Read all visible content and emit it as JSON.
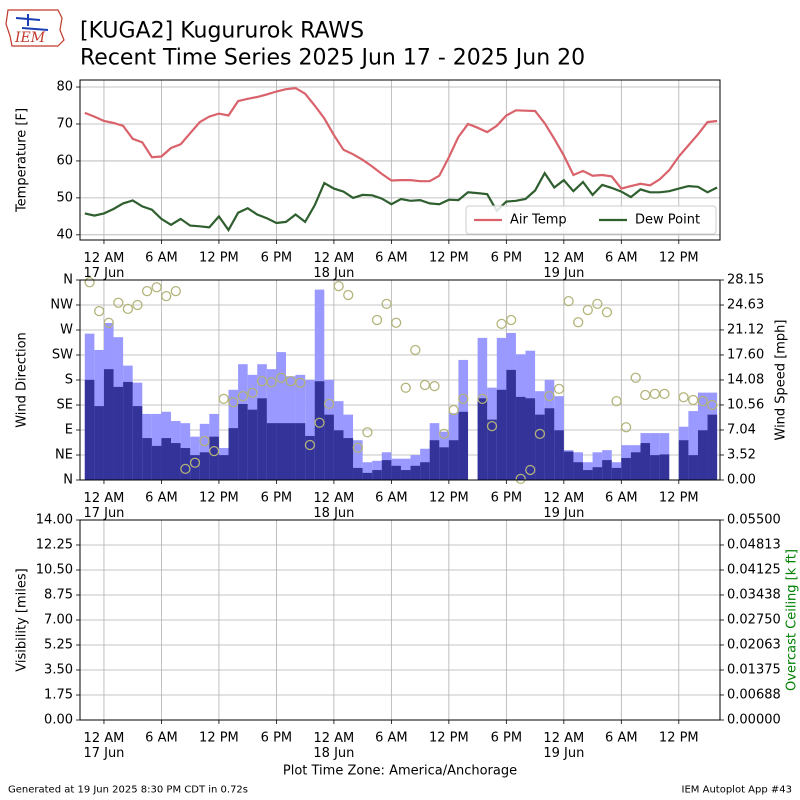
{
  "header": {
    "title": "[KUGA2] Kugururok RAWS",
    "subtitle": "Recent Time Series 2025 Jun 17 - 2025 Jun 20",
    "logo": "IEM"
  },
  "footer": {
    "left": "Generated at 19 Jun 2025 8:30 PM CDT in 0.72s",
    "right": "IEM Autoplot App #43"
  },
  "chart_data": [
    {
      "type": "line",
      "ylabel": "Temperature [F]",
      "xlim": [
        -2.5,
        64.3
      ],
      "xticks": [
        {
          "value": 0,
          "label": "12 AM\n17 Jun"
        },
        {
          "value": 6,
          "label": "6 AM"
        },
        {
          "value": 12,
          "label": "12 PM"
        },
        {
          "value": 18,
          "label": "6 PM"
        },
        {
          "value": 24,
          "label": "12 AM\n18 Jun"
        },
        {
          "value": 30,
          "label": "6 AM"
        },
        {
          "value": 36,
          "label": "12 PM"
        },
        {
          "value": 42,
          "label": "6 PM"
        },
        {
          "value": 48,
          "label": "12 AM\n19 Jun"
        },
        {
          "value": 54,
          "label": "6 AM"
        },
        {
          "value": 60,
          "label": "12 PM"
        }
      ],
      "ylim": [
        38.6,
        81.9
      ],
      "yticks": [
        40,
        50,
        60,
        70,
        80
      ],
      "grid": true,
      "legend": "lower right",
      "x": [
        -2,
        -1,
        0,
        1,
        2,
        3,
        4,
        5,
        6,
        7,
        8,
        9,
        10,
        11,
        12,
        13,
        14,
        15,
        16,
        17,
        18,
        19,
        20,
        21,
        22,
        23,
        24,
        25,
        26,
        27,
        28,
        29,
        30,
        31,
        32,
        33,
        34,
        35,
        36,
        37,
        38,
        39,
        40,
        41,
        42,
        43,
        44,
        45,
        46,
        47,
        48,
        49,
        50,
        51,
        52,
        53,
        54,
        55,
        56,
        57,
        58,
        59,
        60,
        61,
        62,
        63,
        64
      ],
      "series": [
        {
          "name": "Air Temp",
          "color": "#d9626b",
          "values": [
            73,
            72,
            70.8,
            70.3,
            69.5,
            66,
            65,
            61,
            61.2,
            63.5,
            64.5,
            67.5,
            70.5,
            72,
            72.8,
            72.3,
            76.2,
            76.8,
            77.3,
            78,
            78.8,
            79.4,
            79.7,
            78.2,
            75,
            71.5,
            67,
            63,
            61.8,
            60.3,
            58.5,
            56.5,
            54.7,
            54.8,
            54.8,
            54.5,
            54.5,
            56,
            61,
            66.5,
            70,
            69,
            67.8,
            69.5,
            72.3,
            73.7,
            73.6,
            73.5,
            70.2,
            66,
            61.5,
            56.2,
            57.3,
            56,
            56.2,
            55.8,
            52.5,
            53.2,
            53.8,
            53.4,
            55,
            57.5,
            61.2,
            64.2,
            67.2,
            70.5,
            70.8
          ]
        },
        {
          "name": "Dew Point",
          "color": "#2f5f2f",
          "values": [
            45.8,
            45.2,
            45.8,
            47,
            48.5,
            49.3,
            47.7,
            46.8,
            44.3,
            42.7,
            44.3,
            42.5,
            42.3,
            42,
            45,
            41.3,
            46,
            47.2,
            45.5,
            44.5,
            43.2,
            43.5,
            45.5,
            43.5,
            48,
            54,
            52.5,
            51.7,
            50,
            50.8,
            50.7,
            49.8,
            48.3,
            49.7,
            49.2,
            49.4,
            48.5,
            48.3,
            49.5,
            49.4,
            51.5,
            51.3,
            51,
            46.5,
            49,
            49.2,
            49.7,
            52,
            56.7,
            52.8,
            54.8,
            51.8,
            54.3,
            50.8,
            53.5,
            52.7,
            51.7,
            50.2,
            52.3,
            51.5,
            51.5,
            51.8,
            52.5,
            53.2,
            53,
            51.5,
            52.8
          ]
        }
      ]
    },
    {
      "type": "bar",
      "ylabel": "Wind Direction",
      "y2label": "Wind Speed [mph]",
      "xlim": [
        -2.5,
        64.3
      ],
      "xticks": [
        {
          "value": 0,
          "label": "12 AM\n17 Jun"
        },
        {
          "value": 6,
          "label": "6 AM"
        },
        {
          "value": 12,
          "label": "12 PM"
        },
        {
          "value": 18,
          "label": "6 PM"
        },
        {
          "value": 24,
          "label": "12 AM\n18 Jun"
        },
        {
          "value": 30,
          "label": "6 AM"
        },
        {
          "value": 36,
          "label": "12 PM"
        },
        {
          "value": 42,
          "label": "6 PM"
        },
        {
          "value": 48,
          "label": "12 AM\n19 Jun"
        },
        {
          "value": 54,
          "label": "6 AM"
        },
        {
          "value": 60,
          "label": "12 PM"
        }
      ],
      "ylim": [
        0,
        360
      ],
      "yticks": [
        {
          "value": 0,
          "label": "N"
        },
        {
          "value": 45,
          "label": "NE"
        },
        {
          "value": 90,
          "label": "E"
        },
        {
          "value": 135,
          "label": "SE"
        },
        {
          "value": 180,
          "label": "S"
        },
        {
          "value": 225,
          "label": "SW"
        },
        {
          "value": 270,
          "label": "W"
        },
        {
          "value": 315,
          "label": "NW"
        },
        {
          "value": 360,
          "label": "N"
        }
      ],
      "y2lim": [
        0,
        28.15
      ],
      "y2ticks": [
        {
          "value": 0,
          "label": "0.00"
        },
        3.52,
        7.04,
        10.56,
        14.08,
        {
          "value": 17.6,
          "label": "17.60"
        },
        21.12,
        24.63,
        28.15
      ],
      "grid": true,
      "x": [
        -1.5,
        -0.5,
        0.5,
        1.5,
        2.5,
        3.5,
        4.5,
        5.5,
        6.5,
        7.5,
        8.5,
        9.5,
        10.5,
        11.5,
        12.5,
        13.5,
        14.5,
        15.5,
        16.5,
        17.5,
        18.5,
        19.5,
        20.5,
        21.5,
        22.5,
        23.5,
        24.5,
        25.5,
        26.5,
        27.5,
        28.5,
        29.5,
        30.5,
        31.5,
        32.5,
        33.5,
        34.5,
        35.5,
        36.5,
        37.5,
        38.5,
        39.5,
        40.5,
        41.5,
        42.5,
        43.5,
        44.5,
        45.5,
        46.5,
        47.5,
        48.5,
        49.5,
        50.5,
        51.5,
        52.5,
        53.5,
        54.5,
        55.5,
        56.5,
        57.5,
        58.5,
        59.5,
        60.5,
        61.5,
        62.5,
        63.5
      ],
      "series": [
        {
          "type": "bar",
          "axis": "y2",
          "color": "#9999ff",
          "values": [
            20.6,
            18.3,
            22.1,
            20.1,
            16.1,
            13.7,
            9.3,
            9.3,
            9.6,
            8.3,
            8.0,
            6.1,
            7.9,
            9.3,
            4.5,
            12.7,
            16.3,
            14.8,
            16.3,
            15.6,
            18.0,
            14.6,
            14.8,
            14.1,
            26.8,
            14.1,
            11.1,
            9.2,
            5.6,
            2.5,
            2.7,
            3.9,
            3.0,
            3.0,
            3.5,
            4.4,
            8.0,
            6.8,
            9.4,
            16.9,
            null,
            20.0,
            13.0,
            20.0,
            20.7,
            17.7,
            18.2,
            12.5,
            14.1,
            11.8,
            4.2,
            3.9,
            2.5,
            3.9,
            4.2,
            2.5,
            4.9,
            4.9,
            6.6,
            6.6,
            6.6,
            null,
            7.5,
            9.7,
            12.3,
            12.3
          ]
        },
        {
          "type": "bar",
          "axis": "y2",
          "color": "#333399",
          "values": [
            14.1,
            10.4,
            15.6,
            13.1,
            13.8,
            10.4,
            5.9,
            4.8,
            5.9,
            5.2,
            4.5,
            3.5,
            3.9,
            6.1,
            3.5,
            7.3,
            10.7,
            9.9,
            11.5,
            8.0,
            8.0,
            8.0,
            8.0,
            6.2,
            13.9,
            9.2,
            7.0,
            5.9,
            1.7,
            1.0,
            1.4,
            2.8,
            2.0,
            1.4,
            2.0,
            2.5,
            5.6,
            4.6,
            5.6,
            9.6,
            null,
            11.5,
            8.5,
            12.7,
            15.5,
            11.7,
            11.5,
            9.2,
            10.1,
            7.0,
            4.0,
            2.5,
            1.4,
            1.8,
            2.8,
            1.7,
            3.1,
            3.9,
            5.2,
            3.5,
            3.6,
            null,
            5.6,
            3.5,
            7.0,
            9.2
          ]
        },
        {
          "type": "scatter",
          "axis": "y",
          "color": "#b3b37a",
          "values": [
            356,
            304,
            283,
            319,
            308,
            315,
            340,
            347,
            331,
            340,
            20,
            31,
            70,
            52,
            146,
            140,
            151,
            157,
            178,
            176,
            184,
            178,
            175,
            63,
            103,
            137,
            349,
            333,
            58,
            86,
            288,
            317,
            283,
            166,
            234,
            171,
            169,
            83,
            126,
            146,
            null,
            146,
            97,
            281,
            288,
            2,
            18,
            83,
            151,
            164,
            322,
            284,
            306,
            317,
            302,
            142,
            95,
            184,
            153,
            155,
            155,
            null,
            149,
            144,
            142,
            135
          ]
        }
      ]
    },
    {
      "type": "line",
      "ylabel": "Visibility [miles]",
      "y2label": "Overcast Ceiling [k ft]",
      "y2label_color": "#008000",
      "xlim": [
        -2.5,
        64.3
      ],
      "xticks": [
        {
          "value": 0,
          "label": "12 AM\n17 Jun"
        },
        {
          "value": 6,
          "label": "6 AM"
        },
        {
          "value": 12,
          "label": "12 PM"
        },
        {
          "value": 18,
          "label": "6 PM"
        },
        {
          "value": 24,
          "label": "12 AM\n18 Jun"
        },
        {
          "value": 30,
          "label": "6 AM"
        },
        {
          "value": 36,
          "label": "12 PM"
        },
        {
          "value": 42,
          "label": "6 PM"
        },
        {
          "value": 48,
          "label": "12 AM\n19 Jun"
        },
        {
          "value": 54,
          "label": "6 AM"
        },
        {
          "value": 60,
          "label": "12 PM"
        }
      ],
      "xlabel": "Plot Time Zone: America/Anchorage",
      "ylim": [
        0,
        14
      ],
      "yticks": [
        {
          "value": 0,
          "label": "0.00"
        },
        1.75,
        {
          "value": 3.5,
          "label": "3.50"
        },
        5.25,
        {
          "value": 7,
          "label": "7.00"
        },
        8.75,
        {
          "value": 10.5,
          "label": "10.50"
        },
        12.25,
        {
          "value": 14,
          "label": "14.00"
        }
      ],
      "y2lim": [
        0,
        0.055
      ],
      "y2ticks": [
        {
          "value": 0,
          "label": "0.00000"
        },
        0.00688,
        0.01375,
        0.02063,
        {
          "value": 0.0275,
          "label": "0.02750"
        },
        0.03438,
        0.04125,
        0.04813,
        {
          "value": 0.055,
          "label": "0.05500"
        }
      ],
      "grid": true,
      "x": [],
      "series": []
    }
  ]
}
